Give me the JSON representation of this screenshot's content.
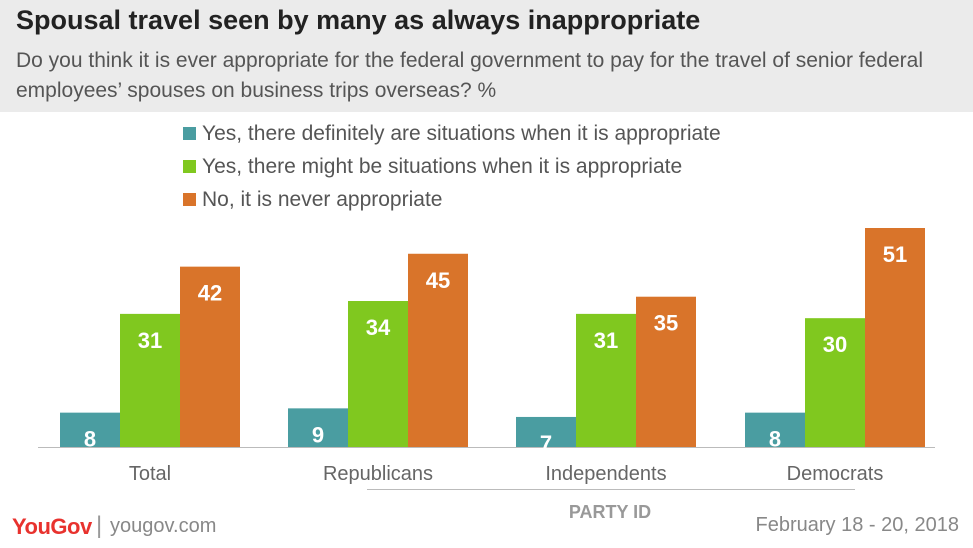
{
  "header": {
    "title": "Spousal travel seen by many as always inappropriate",
    "subtitle": "Do you think it is ever appropriate for the federal government to pay for the travel of senior federal employees’ spouses on business trips overseas? %"
  },
  "footer": {
    "brand": "YouGov",
    "url": "yougov.com",
    "date": "February 18 - 20, 2018",
    "group_label": "PARTY ID"
  },
  "chart_data": {
    "type": "bar",
    "categories": [
      "Total",
      "Republicans",
      "Independents",
      "Democrats"
    ],
    "series": [
      {
        "name": "Yes, there definitely are situations when it is appropriate",
        "color": "#4a9da1",
        "values": [
          8,
          9,
          7,
          8
        ]
      },
      {
        "name": "Yes, there might be situations when it is appropriate",
        "color": "#80c81f",
        "values": [
          31,
          34,
          31,
          30
        ]
      },
      {
        "name": "No, it is never appropriate",
        "color": "#d9742a",
        "values": [
          42,
          45,
          35,
          51
        ]
      }
    ],
    "ylim": [
      0,
      51
    ],
    "grid": false,
    "legend_position": "top"
  }
}
